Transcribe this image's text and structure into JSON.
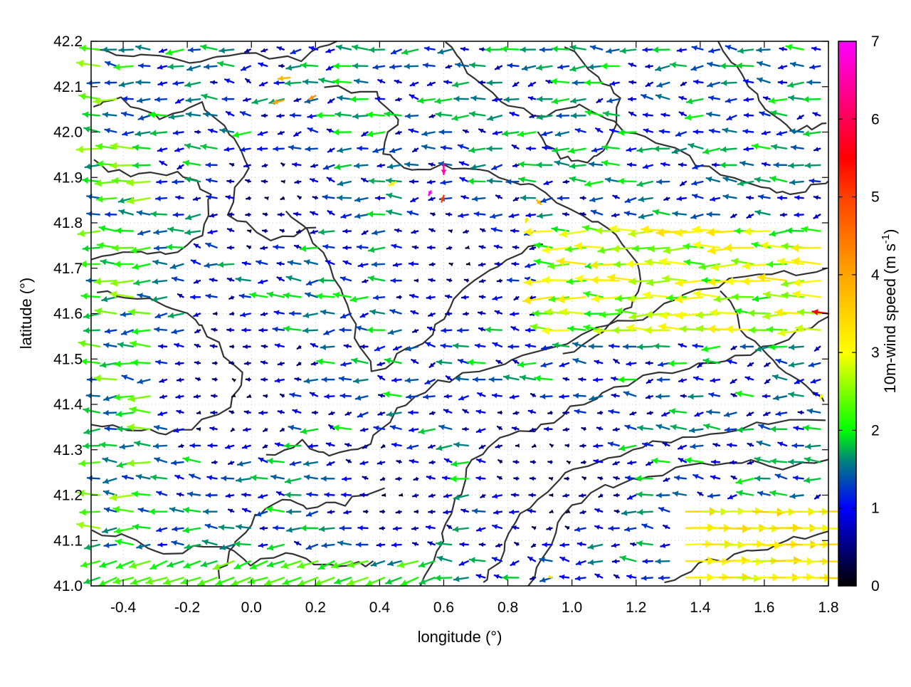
{
  "chart_data": {
    "type": "vector-field",
    "title": "",
    "xlabel": "longitude (°)",
    "ylabel": "latitude (°)",
    "xlim": [
      -0.5,
      1.8
    ],
    "ylim": [
      41.0,
      42.2
    ],
    "xticks": [
      -0.4,
      -0.2,
      0.0,
      0.2,
      0.4,
      0.6,
      0.8,
      1.0,
      1.2,
      1.4,
      1.6,
      1.8
    ],
    "xtick_labels": [
      "-0.4",
      "-0.2",
      "0.0",
      "0.2",
      "0.4",
      "0.6",
      "0.8",
      "1.0",
      "1.2",
      "1.4",
      "1.6",
      "1.8"
    ],
    "yticks": [
      41.0,
      41.1,
      41.2,
      41.3,
      41.4,
      41.5,
      41.6,
      41.7,
      41.8,
      41.9,
      42.0,
      42.1,
      42.2
    ],
    "ytick_labels": [
      "41.0",
      "41.1",
      "41.2",
      "41.3",
      "41.4",
      "41.5",
      "41.6",
      "41.7",
      "41.8",
      "41.9",
      "42.0",
      "42.1",
      "42.2"
    ],
    "grid": true,
    "colorbar": {
      "label": "10m-wind speed (m s",
      "label_sup": "-1",
      "label_close": ")",
      "range": [
        0,
        7
      ],
      "ticks": [
        0,
        1,
        2,
        3,
        4,
        5,
        6,
        7
      ],
      "tick_labels": [
        "0",
        "1",
        "2",
        "3",
        "4",
        "5",
        "6",
        "7"
      ],
      "palette": [
        {
          "v": 0,
          "c": "#000000"
        },
        {
          "v": 0.5,
          "c": "#000080"
        },
        {
          "v": 1,
          "c": "#0000ff"
        },
        {
          "v": 1.6,
          "c": "#008080"
        },
        {
          "v": 2,
          "c": "#00ff00"
        },
        {
          "v": 3,
          "c": "#ffff00"
        },
        {
          "v": 4,
          "c": "#ffa500"
        },
        {
          "v": 5,
          "c": "#ff4000"
        },
        {
          "v": 5.5,
          "c": "#ff0000"
        },
        {
          "v": 7,
          "c": "#ff00ff"
        }
      ]
    },
    "contour_color": "#333333",
    "vectors": [
      {
        "lon": 0.12,
        "lat": 42.12,
        "u": -2.8,
        "v": -0.3,
        "speed": 3.8
      },
      {
        "lon": 0.1,
        "lat": 42.07,
        "u": -2.5,
        "v": -0.6,
        "speed": 4.0
      },
      {
        "lon": 0.2,
        "lat": 42.08,
        "u": -1.5,
        "v": -0.8,
        "speed": 4.2
      },
      {
        "lon": 0.6,
        "lat": 41.93,
        "u": 0.0,
        "v": -2.5,
        "speed": 6.5
      },
      {
        "lon": 0.56,
        "lat": 41.87,
        "u": -0.5,
        "v": -1.0,
        "speed": 7.0
      },
      {
        "lon": 0.6,
        "lat": 41.86,
        "u": -0.5,
        "v": -1.5,
        "speed": 5.0
      },
      {
        "lon": 0.45,
        "lat": 41.89,
        "u": -1.5,
        "v": -0.8,
        "speed": 3.2
      },
      {
        "lon": 0.89,
        "lat": 41.85,
        "u": 1.0,
        "v": -1.0,
        "speed": 3.8
      },
      {
        "lon": 0.86,
        "lat": 41.81,
        "u": -0.3,
        "v": -1.0,
        "speed": 3.3
      },
      {
        "lon": 1.8,
        "lat": 41.6,
        "u": -3.8,
        "v": 0.5,
        "speed": 5.5
      },
      {
        "lon": 1.78,
        "lat": 41.42,
        "u": -0.5,
        "v": -0.8,
        "speed": 3.0
      },
      {
        "lon": 0.93,
        "lat": 41.02,
        "u": 0.5,
        "v": -0.2,
        "speed": 3.3
      }
    ]
  }
}
